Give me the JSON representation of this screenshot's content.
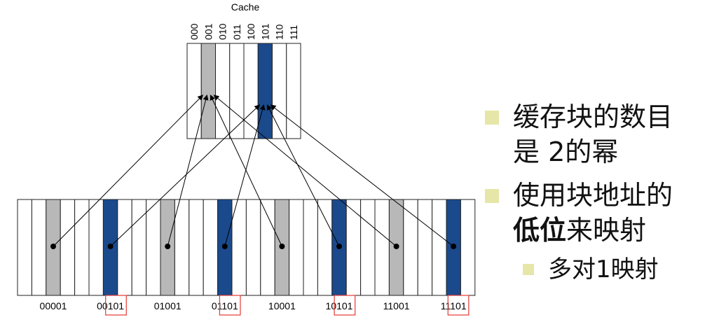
{
  "cache": {
    "title": "Cache",
    "indices": [
      "000",
      "001",
      "010",
      "011",
      "100",
      "101",
      "110",
      "111"
    ],
    "slot_fill": [
      "white",
      "gray",
      "white",
      "white",
      "white",
      "blue",
      "white",
      "white"
    ]
  },
  "memory": {
    "slot_fill": [
      "white",
      "white",
      "gray",
      "white",
      "white",
      "white",
      "blue",
      "white",
      "white",
      "white",
      "gray",
      "white",
      "white",
      "white",
      "blue",
      "white",
      "white",
      "white",
      "gray",
      "white",
      "white",
      "white",
      "blue",
      "white",
      "white",
      "white",
      "gray",
      "white",
      "white",
      "white",
      "blue",
      "white"
    ],
    "addresses": [
      {
        "prefix": "00001",
        "suffix": ""
      },
      {
        "prefix": "00",
        "suffix": "101"
      },
      {
        "prefix": "01001",
        "suffix": ""
      },
      {
        "prefix": "01",
        "suffix": "101"
      },
      {
        "prefix": "10001",
        "suffix": ""
      },
      {
        "prefix": "10",
        "suffix": "101"
      },
      {
        "prefix": "11001",
        "suffix": ""
      },
      {
        "prefix": "11",
        "suffix": "101"
      }
    ]
  },
  "mappings": [
    {
      "from_slot": 2,
      "to_cache": 1
    },
    {
      "from_slot": 6,
      "to_cache": 5
    },
    {
      "from_slot": 10,
      "to_cache": 1
    },
    {
      "from_slot": 14,
      "to_cache": 5
    },
    {
      "from_slot": 18,
      "to_cache": 1
    },
    {
      "from_slot": 22,
      "to_cache": 5
    },
    {
      "from_slot": 26,
      "to_cache": 1
    },
    {
      "from_slot": 30,
      "to_cache": 5
    }
  ],
  "colors": {
    "gray": "#b8b8b8",
    "blue": "#1a4a8c",
    "white": "#ffffff",
    "highlight": "#e53935",
    "bullet": "#e6e6a8"
  },
  "bullets": {
    "b1_line1": "缓存块的数目",
    "b1_line2": "是 2的幂",
    "b2_line1": "使用块地址的",
    "b2_bold": "低位",
    "b2_rest": "来映射",
    "b3": "多对1映射"
  }
}
